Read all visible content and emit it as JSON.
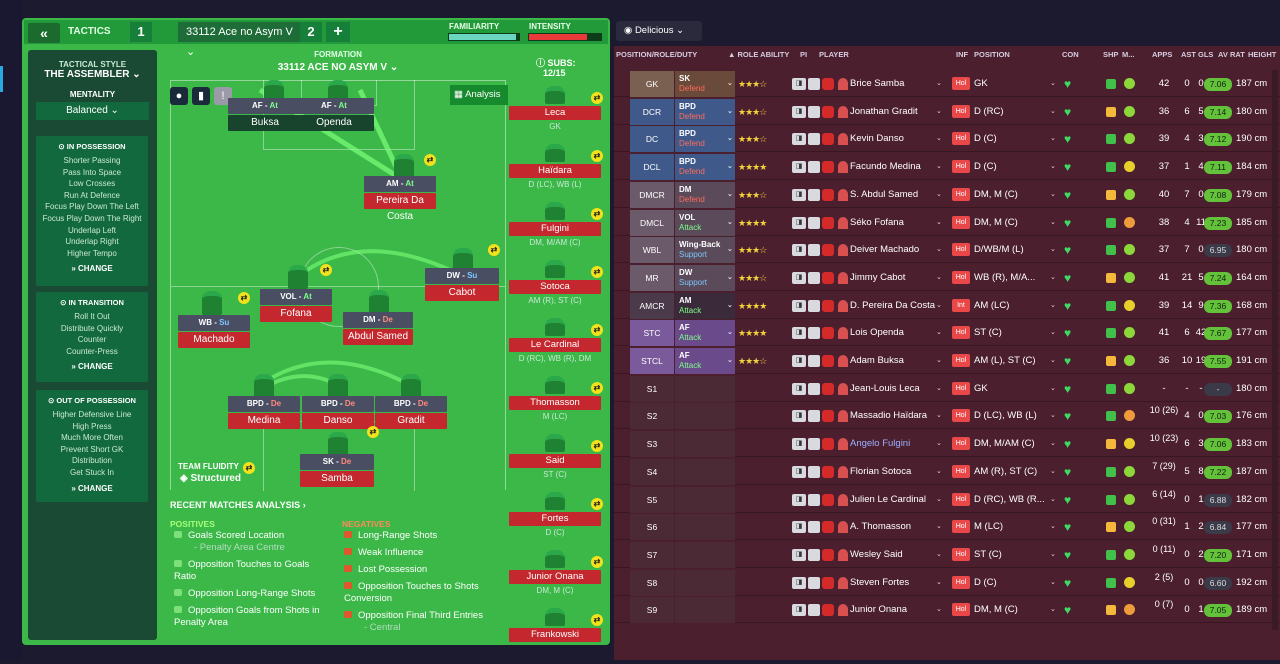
{
  "topbar": {
    "tactics_label": "TACTICS",
    "slot1": "1",
    "tactic_name": "33112 Ace no Asym V",
    "slot2": "2",
    "plus": "+",
    "familiarity": "FAMILIARITY",
    "intensity": "INTENSITY",
    "familiarity_level": 0.95,
    "intensity_level": 0.8
  },
  "left": {
    "style_label": "TACTICAL STYLE",
    "style": "THE ASSEMBLER",
    "mentality_label": "MENTALITY",
    "mentality": "Balanced",
    "in_possession": {
      "title": "IN POSSESSION",
      "items": [
        "Shorter Passing",
        "Pass Into Space",
        "Low Crosses",
        "Run At Defence",
        "Focus Play Down The Left",
        "Focus Play Down The Right",
        "Underlap Left",
        "Underlap Right",
        "Higher Tempo"
      ]
    },
    "in_transition": {
      "title": "IN TRANSITION",
      "items": [
        "Roll It Out",
        "Distribute Quickly",
        "Counter",
        "Counter-Press"
      ]
    },
    "out_of_possession": {
      "title": "OUT OF POSSESSION",
      "items": [
        "Higher Defensive Line",
        "High Press",
        "Much More Often",
        "Prevent Short GK",
        "Distribution",
        "Get Stuck In"
      ]
    },
    "change": "CHANGE"
  },
  "formation": {
    "label": "FORMATION",
    "name": "33112 ACE NO ASYM V",
    "analysis": "Analysis",
    "fluidity_label": "TEAM FLUIDITY",
    "fluidity": "Structured",
    "players": {
      "af1": {
        "role": "AF",
        "duty": "At",
        "name": "Buksa"
      },
      "af2": {
        "role": "AF",
        "duty": "At",
        "name": "Openda"
      },
      "am": {
        "role": "AM",
        "duty": "At",
        "name": "Pereira Da Costa"
      },
      "dw": {
        "role": "DW",
        "duty": "Su",
        "name": "Cabot"
      },
      "vol": {
        "role": "VOL",
        "duty": "At",
        "name": "Fofana"
      },
      "wb": {
        "role": "WB",
        "duty": "Su",
        "name": "Machado"
      },
      "dm": {
        "role": "DM",
        "duty": "De",
        "name": "Abdul Samed"
      },
      "bpd1": {
        "role": "BPD",
        "duty": "De",
        "name": "Medina"
      },
      "bpd2": {
        "role": "BPD",
        "duty": "De",
        "name": "Danso"
      },
      "bpd3": {
        "role": "BPD",
        "duty": "De",
        "name": "Gradit"
      },
      "sk": {
        "role": "SK",
        "duty": "De",
        "name": "Samba"
      }
    }
  },
  "subs": {
    "label": "SUBS:",
    "count": "12/15",
    "list": [
      {
        "name": "Leca",
        "pos": "GK"
      },
      {
        "name": "Haïdara",
        "pos": "D (LC), WB (L)"
      },
      {
        "name": "Fulgini",
        "pos": "DM, M/AM (C)"
      },
      {
        "name": "Sotoca",
        "pos": "AM (R), ST (C)"
      },
      {
        "name": "Le Cardinal",
        "pos": "D (RC), WB (R), DM"
      },
      {
        "name": "Thomasson",
        "pos": "M (LC)"
      },
      {
        "name": "Said",
        "pos": "ST (C)"
      },
      {
        "name": "Fortes",
        "pos": "D (C)"
      },
      {
        "name": "Junior Onana",
        "pos": "DM, M (C)"
      },
      {
        "name": "Frankowski",
        "pos": ""
      }
    ]
  },
  "analysis": {
    "title": "RECENT MATCHES ANALYSIS",
    "pos_label": "POSITIVES",
    "neg_label": "NEGATIVES",
    "positives": [
      [
        "Goals Scored Location",
        "- Penalty Area Centre"
      ],
      [
        "Opposition Touches to Goals Ratio",
        ""
      ],
      [
        "Opposition Long-Range Shots",
        ""
      ],
      [
        "Opposition Goals from Shots in Penalty Area",
        ""
      ]
    ],
    "negatives": [
      [
        "Long-Range Shots",
        ""
      ],
      [
        "Weak Influence",
        ""
      ],
      [
        "Lost Possession",
        ""
      ],
      [
        "Opposition Touches to Shots Conversion",
        ""
      ],
      [
        "Opposition Final Third Entries",
        "- Central"
      ]
    ]
  },
  "squad": {
    "view": "Delicious",
    "headers": {
      "pos": "POSITION/ROLE/DUTY",
      "ability": "ROLE ABILITY",
      "pi": "PI",
      "player": "PLAYER",
      "inf": "INF",
      "position": "POSITION",
      "con": "CON",
      "shp": "SHP",
      "m": "M...",
      "apps": "APPS",
      "ast": "AST",
      "gls": "GLS",
      "avr": "AV RAT",
      "height": "HEIGHT"
    },
    "rows": [
      {
        "slot": "GK",
        "role": "SK",
        "duty": "Defend",
        "stars": 3,
        "name": "Brice Samba",
        "inf": "Hol",
        "position": "GK",
        "apps": "42",
        "ast": "0",
        "gls": "0",
        "avr": "7.06",
        "height": "187 cm"
      },
      {
        "slot": "DCR",
        "role": "BPD",
        "duty": "Defend",
        "stars": 3,
        "name": "Jonathan Gradit",
        "inf": "Hol",
        "position": "D (RC)",
        "apps": "36",
        "ast": "6",
        "gls": "5",
        "avr": "7.14",
        "height": "180 cm"
      },
      {
        "slot": "DC",
        "role": "BPD",
        "duty": "Defend",
        "stars": 3,
        "name": "Kevin Danso",
        "inf": "Hol",
        "position": "D (C)",
        "apps": "39",
        "ast": "4",
        "gls": "3",
        "avr": "7.12",
        "height": "190 cm"
      },
      {
        "slot": "DCL",
        "role": "BPD",
        "duty": "Defend",
        "stars": 3.5,
        "name": "Facundo Medina",
        "inf": "Hol",
        "position": "D (C)",
        "apps": "37",
        "ast": "1",
        "gls": "4",
        "avr": "7.11",
        "height": "184 cm"
      },
      {
        "slot": "DMCR",
        "role": "DM",
        "duty": "Defend",
        "stars": 3,
        "name": "S. Abdul Samed",
        "inf": "Hol",
        "position": "DM, M (C)",
        "apps": "40",
        "ast": "7",
        "gls": "0",
        "avr": "7.08",
        "height": "179 cm"
      },
      {
        "slot": "DMCL",
        "role": "VOL",
        "duty": "Attack",
        "stars": 3.5,
        "name": "Séko Fofana",
        "inf": "Hol",
        "position": "DM, M (C)",
        "apps": "38",
        "ast": "4",
        "gls": "11",
        "avr": "7.23",
        "height": "185 cm"
      },
      {
        "slot": "WBL",
        "role": "Wing-Back",
        "duty": "Support",
        "stars": 2.5,
        "name": "Deiver Machado",
        "inf": "Hol",
        "position": "D/WB/M (L)",
        "apps": "37",
        "ast": "7",
        "gls": "0",
        "avr": "6.95",
        "height": "180 cm"
      },
      {
        "slot": "MR",
        "role": "DW",
        "duty": "Support",
        "stars": 3,
        "name": "Jimmy Cabot",
        "inf": "Hol",
        "position": "WB (R), M/A...",
        "apps": "41",
        "ast": "21",
        "gls": "5",
        "avr": "7.24",
        "height": "164 cm"
      },
      {
        "slot": "AMCR",
        "role": "AM",
        "duty": "Attack",
        "stars": 3.5,
        "name": "D. Pereira Da Costa",
        "inf": "Int",
        "position": "AM (LC)",
        "apps": "39",
        "ast": "14",
        "gls": "9",
        "avr": "7.36",
        "height": "168 cm"
      },
      {
        "slot": "STC",
        "role": "AF",
        "duty": "Attack",
        "stars": 4,
        "name": "Lois Openda",
        "inf": "Hol",
        "position": "ST (C)",
        "apps": "41",
        "ast": "6",
        "gls": "42",
        "avr": "7.67",
        "height": "177 cm"
      },
      {
        "slot": "STCL",
        "role": "AF",
        "duty": "Attack",
        "stars": 3,
        "name": "Adam Buksa",
        "inf": "Hol",
        "position": "AM (L), ST (C)",
        "apps": "36",
        "ast": "10",
        "gls": "19",
        "avr": "7.55",
        "height": "191 cm"
      },
      {
        "slot": "S1",
        "role": "",
        "duty": "",
        "stars": 0,
        "name": "Jean-Louis Leca",
        "inf": "Hol",
        "position": "GK",
        "apps": "-",
        "ast": "-",
        "gls": "-",
        "avr": "-",
        "height": "180 cm"
      },
      {
        "slot": "S2",
        "role": "",
        "duty": "",
        "stars": 0,
        "name": "Massadio Haïdara",
        "inf": "Hol",
        "position": "D (LC), WB (L)",
        "apps": "10 (26)",
        "ast": "4",
        "gls": "0",
        "avr": "7.03",
        "height": "176 cm"
      },
      {
        "slot": "S3",
        "role": "",
        "duty": "",
        "stars": 0,
        "name": "Angelo Fulgini",
        "inf": "Hol",
        "position": "DM, M/AM (C)",
        "apps": "10 (23)",
        "ast": "6",
        "gls": "3",
        "avr": "7.06",
        "height": "183 cm"
      },
      {
        "slot": "S4",
        "role": "",
        "duty": "",
        "stars": 0,
        "name": "Florian Sotoca",
        "inf": "Hol",
        "position": "AM (R), ST (C)",
        "apps": "7 (29)",
        "ast": "5",
        "gls": "8",
        "avr": "7.22",
        "height": "187 cm"
      },
      {
        "slot": "S5",
        "role": "",
        "duty": "",
        "stars": 0,
        "name": "Julien Le Cardinal",
        "inf": "Hol",
        "position": "D (RC), WB (R...",
        "apps": "6 (14)",
        "ast": "0",
        "gls": "1",
        "avr": "6.88",
        "height": "182 cm"
      },
      {
        "slot": "S6",
        "role": "",
        "duty": "",
        "stars": 0,
        "name": "A. Thomasson",
        "inf": "Hol",
        "position": "M (LC)",
        "apps": "0 (31)",
        "ast": "1",
        "gls": "2",
        "avr": "6.84",
        "height": "177 cm"
      },
      {
        "slot": "S7",
        "role": "",
        "duty": "",
        "stars": 0,
        "name": "Wesley Said",
        "inf": "Hol",
        "position": "ST (C)",
        "apps": "0 (11)",
        "ast": "0",
        "gls": "2",
        "avr": "7.20",
        "height": "171 cm"
      },
      {
        "slot": "S8",
        "role": "",
        "duty": "",
        "stars": 0,
        "name": "Steven Fortes",
        "inf": "Hol",
        "position": "D (C)",
        "apps": "2 (5)",
        "ast": "0",
        "gls": "0",
        "avr": "6.60",
        "height": "192 cm"
      },
      {
        "slot": "S9",
        "role": "",
        "duty": "",
        "stars": 0,
        "name": "Junior Onana",
        "inf": "Hol",
        "position": "DM, M (C)",
        "apps": "0 (7)",
        "ast": "0",
        "gls": "1",
        "avr": "7.05",
        "height": "189 cm"
      }
    ]
  }
}
